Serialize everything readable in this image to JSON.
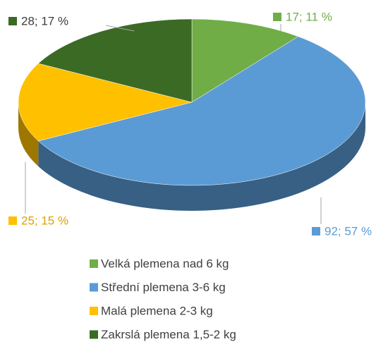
{
  "chart_data": {
    "type": "pie",
    "categories": [
      "Velká plemena nad 6 kg",
      "Střední plemena 3-6 kg",
      "Malá plemena 2-3 kg",
      "Zakrslá plemena 1,5-2 kg"
    ],
    "values": [
      17,
      92,
      25,
      28
    ],
    "value_labels": [
      "17; 11 %",
      "92; 57 %",
      "25; 15 %",
      "28; 17 %"
    ],
    "colors": [
      "#70ad47",
      "#5b9bd5",
      "#ffc000",
      "#3b6a25"
    ],
    "legend": "bottom"
  }
}
